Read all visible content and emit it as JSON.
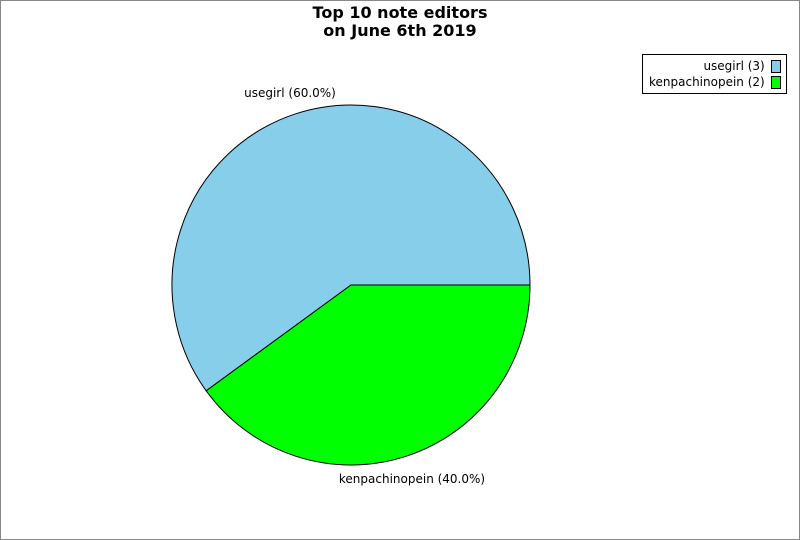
{
  "chart_data": {
    "type": "pie",
    "title_lines": [
      "Top 10 note editors",
      "on June 6th 2019"
    ],
    "slices": [
      {
        "name": "usegirl",
        "value": 3,
        "percent_label": "usegirl (60.0%)",
        "legend_label": "usegirl (3)",
        "color": "#87ceeb"
      },
      {
        "name": "kenpachinopein",
        "value": 2,
        "percent_label": "kenpachinopein (40.0%)",
        "legend_label": "kenpachinopein (2)",
        "color": "#00ff00"
      }
    ],
    "legend_position": "top-right"
  }
}
